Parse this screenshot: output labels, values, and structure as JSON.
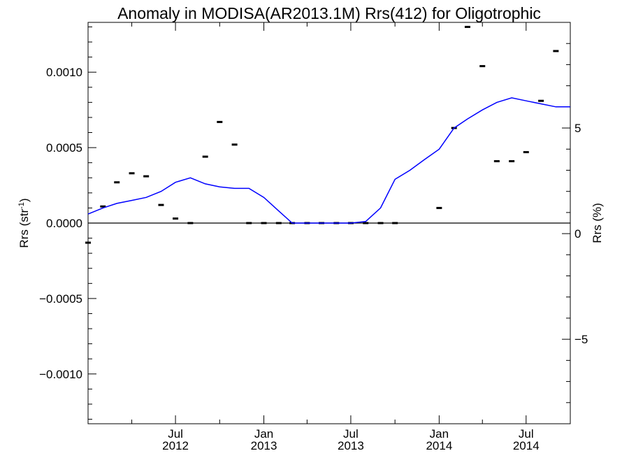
{
  "chart_data": {
    "type": "line",
    "title": "Anomaly in MODISA(AR2013.1M) Rrs(412) for Oligotrophic",
    "ylabel_left": "Rrs (str",
    "ylabel_left_sup": "-1",
    "ylabel_left_close": ")",
    "ylabel_right": "Rrs (%)",
    "ylim_left": [
      -0.00133,
      0.00133
    ],
    "ylim_right": [
      -9.0,
      10.0
    ],
    "xlim": [
      "2012-01-01",
      "2014-10-01"
    ],
    "yticks_left": [
      {
        "value": 0.001,
        "label": "0.0010"
      },
      {
        "value": 0.0005,
        "label": "0.0005"
      },
      {
        "value": 0.0,
        "label": "0.0000"
      },
      {
        "value": -0.0005,
        "label": "−0.0005"
      },
      {
        "value": -0.001,
        "label": "−0.0010"
      }
    ],
    "yticks_right": [
      {
        "value": 5,
        "label": "5"
      },
      {
        "value": 0,
        "label": "0"
      },
      {
        "value": -5,
        "label": "−5"
      }
    ],
    "xticks": [
      {
        "date": "2012-07-01",
        "label1": "Jul",
        "label2": "2012"
      },
      {
        "date": "2013-01-01",
        "label1": "Jan",
        "label2": "2013"
      },
      {
        "date": "2013-07-01",
        "label1": "Jul",
        "label2": "2013"
      },
      {
        "date": "2014-01-01",
        "label1": "Jan",
        "label2": "2014"
      },
      {
        "date": "2014-07-01",
        "label1": "Jul",
        "label2": "2014"
      }
    ],
    "series": [
      {
        "style": "dash-markers",
        "color": "#000000",
        "axis": "left",
        "points": [
          {
            "x": "2012-01-01",
            "y": -0.00013
          },
          {
            "x": "2012-02-01",
            "y": 0.00011
          },
          {
            "x": "2012-03-01",
            "y": 0.00027
          },
          {
            "x": "2012-04-01",
            "y": 0.00033
          },
          {
            "x": "2012-05-01",
            "y": 0.00031
          },
          {
            "x": "2012-06-01",
            "y": 0.00012
          },
          {
            "x": "2012-07-01",
            "y": 3e-05
          },
          {
            "x": "2012-08-01",
            "y": 0.0
          },
          {
            "x": "2012-09-01",
            "y": 0.00044
          },
          {
            "x": "2012-10-01",
            "y": 0.00067
          },
          {
            "x": "2012-11-01",
            "y": 0.00052
          },
          {
            "x": "2012-12-01",
            "y": 0.0
          },
          {
            "x": "2013-01-01",
            "y": 0.0
          },
          {
            "x": "2013-02-01",
            "y": 0.0
          },
          {
            "x": "2013-03-01",
            "y": 0.0
          },
          {
            "x": "2013-04-01",
            "y": 0.0
          },
          {
            "x": "2013-05-01",
            "y": 0.0
          },
          {
            "x": "2013-06-01",
            "y": 0.0
          },
          {
            "x": "2013-07-01",
            "y": 0.0
          },
          {
            "x": "2013-08-01",
            "y": 0.0
          },
          {
            "x": "2013-09-01",
            "y": 0.0
          },
          {
            "x": "2013-10-01",
            "y": 0.0
          },
          {
            "x": "2014-01-01",
            "y": 0.0001
          },
          {
            "x": "2014-02-01",
            "y": 0.00063
          },
          {
            "x": "2014-03-01",
            "y": 0.0013
          },
          {
            "x": "2014-04-01",
            "y": 0.00104
          },
          {
            "x": "2014-05-01",
            "y": 0.00041
          },
          {
            "x": "2014-06-01",
            "y": 0.00041
          },
          {
            "x": "2014-07-01",
            "y": 0.00047
          },
          {
            "x": "2014-08-01",
            "y": 0.00081
          },
          {
            "x": "2014-09-01",
            "y": 0.00114
          }
        ]
      },
      {
        "style": "line",
        "color": "#0000ff",
        "axis": "left",
        "points": [
          {
            "x": "2012-01-01",
            "y": 6e-05
          },
          {
            "x": "2012-02-01",
            "y": 0.0001
          },
          {
            "x": "2012-03-01",
            "y": 0.00013
          },
          {
            "x": "2012-04-01",
            "y": 0.00015
          },
          {
            "x": "2012-05-01",
            "y": 0.00017
          },
          {
            "x": "2012-06-01",
            "y": 0.00021
          },
          {
            "x": "2012-07-01",
            "y": 0.00027
          },
          {
            "x": "2012-08-01",
            "y": 0.0003
          },
          {
            "x": "2012-09-01",
            "y": 0.00026
          },
          {
            "x": "2012-10-01",
            "y": 0.00024
          },
          {
            "x": "2012-11-01",
            "y": 0.00023
          },
          {
            "x": "2012-12-01",
            "y": 0.00023
          },
          {
            "x": "2013-01-01",
            "y": 0.00017
          },
          {
            "x": "2013-02-01",
            "y": 8e-05
          },
          {
            "x": "2013-03-01",
            "y": 0.0
          },
          {
            "x": "2013-04-01",
            "y": 0.0
          },
          {
            "x": "2013-05-01",
            "y": 0.0
          },
          {
            "x": "2013-06-01",
            "y": 0.0
          },
          {
            "x": "2013-07-01",
            "y": 0.0
          },
          {
            "x": "2013-08-01",
            "y": 1e-05
          },
          {
            "x": "2013-09-01",
            "y": 0.0001
          },
          {
            "x": "2013-10-01",
            "y": 0.00029
          },
          {
            "x": "2013-11-01",
            "y": 0.00035
          },
          {
            "x": "2013-12-01",
            "y": 0.00042
          },
          {
            "x": "2014-01-01",
            "y": 0.00049
          },
          {
            "x": "2014-02-01",
            "y": 0.00063
          },
          {
            "x": "2014-03-01",
            "y": 0.00069
          },
          {
            "x": "2014-04-01",
            "y": 0.00075
          },
          {
            "x": "2014-05-01",
            "y": 0.0008
          },
          {
            "x": "2014-06-01",
            "y": 0.00083
          },
          {
            "x": "2014-07-01",
            "y": 0.00081
          },
          {
            "x": "2014-08-01",
            "y": 0.00079
          },
          {
            "x": "2014-09-01",
            "y": 0.00077
          },
          {
            "x": "2014-10-01",
            "y": 0.00077
          }
        ]
      }
    ],
    "zero_line": true,
    "grid": false,
    "legend": "none"
  }
}
